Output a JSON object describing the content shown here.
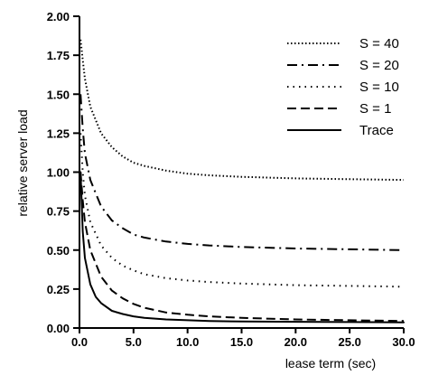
{
  "chart_data": {
    "type": "line",
    "title": "",
    "xlabel": "lease term (sec)",
    "ylabel": "relative server load",
    "xlim": [
      0,
      30
    ],
    "ylim": [
      0,
      2
    ],
    "xticks": [
      0,
      5,
      10,
      15,
      20,
      25,
      30
    ],
    "yticks": [
      0,
      0.25,
      0.5,
      0.75,
      1.0,
      1.25,
      1.5,
      1.75,
      2.0
    ],
    "xtick_labels": [
      "0.0",
      "5.0",
      "10.0",
      "15.0",
      "20.0",
      "25.0",
      "30.0"
    ],
    "ytick_labels": [
      "0.00",
      "0.25",
      "0.50",
      "0.75",
      "1.00",
      "1.25",
      "1.50",
      "1.75",
      "2.00"
    ],
    "grid": false,
    "legend_position": "top-right",
    "series": [
      {
        "name": "S = 40",
        "style": "dotted-dense",
        "x": [
          0.1,
          0.3,
          0.5,
          1,
          2,
          3,
          4,
          5,
          6,
          8,
          10,
          12,
          15,
          20,
          25,
          30
        ],
        "y": [
          1.85,
          1.72,
          1.6,
          1.42,
          1.25,
          1.16,
          1.1,
          1.06,
          1.04,
          1.01,
          0.99,
          0.98,
          0.97,
          0.96,
          0.955,
          0.95
        ]
      },
      {
        "name": "S = 20",
        "style": "dash-dot",
        "x": [
          0.1,
          0.3,
          0.5,
          1,
          2,
          3,
          4,
          5,
          6,
          8,
          10,
          12,
          15,
          20,
          25,
          30
        ],
        "y": [
          1.5,
          1.28,
          1.12,
          0.95,
          0.78,
          0.69,
          0.64,
          0.6,
          0.58,
          0.555,
          0.54,
          0.53,
          0.52,
          0.51,
          0.505,
          0.5
        ]
      },
      {
        "name": "S = 10",
        "style": "dotted-sparse",
        "x": [
          0.1,
          0.3,
          0.5,
          1,
          2,
          3,
          4,
          5,
          6,
          8,
          10,
          12,
          15,
          20,
          25,
          30
        ],
        "y": [
          1.25,
          1.0,
          0.85,
          0.68,
          0.53,
          0.45,
          0.4,
          0.37,
          0.345,
          0.32,
          0.305,
          0.295,
          0.285,
          0.275,
          0.27,
          0.265
        ]
      },
      {
        "name": "S = 1",
        "style": "dashed",
        "x": [
          0.1,
          0.3,
          0.5,
          1,
          2,
          3,
          4,
          5,
          6,
          8,
          10,
          12,
          15,
          20,
          25,
          30
        ],
        "y": [
          1.0,
          0.82,
          0.68,
          0.5,
          0.33,
          0.24,
          0.19,
          0.155,
          0.13,
          0.1,
          0.085,
          0.075,
          0.065,
          0.055,
          0.05,
          0.045
        ]
      },
      {
        "name": "Trace",
        "style": "solid",
        "x": [
          0.1,
          0.3,
          0.5,
          1,
          1.5,
          2,
          3,
          4,
          5,
          6,
          8,
          10,
          12,
          15,
          20,
          25,
          30
        ],
        "y": [
          1.0,
          0.62,
          0.45,
          0.28,
          0.2,
          0.16,
          0.11,
          0.09,
          0.075,
          0.065,
          0.055,
          0.05,
          0.045,
          0.042,
          0.04,
          0.038,
          0.036
        ]
      }
    ]
  }
}
